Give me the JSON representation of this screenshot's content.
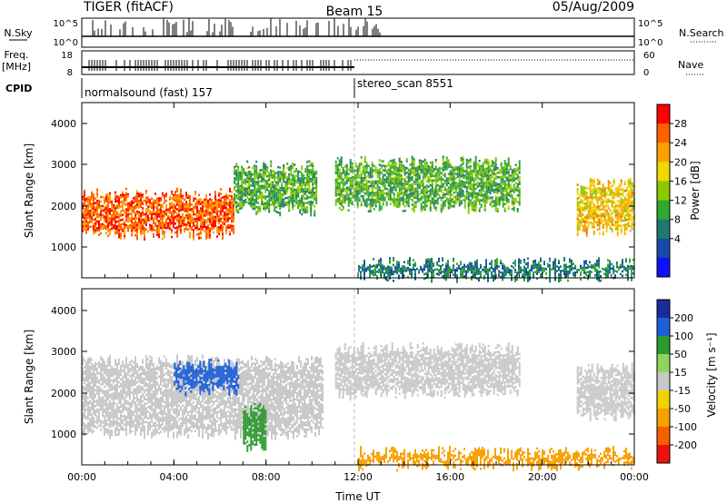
{
  "header": {
    "radar_title": "TIGER (fitACF)",
    "beam": "Beam 15",
    "date": "05/Aug/2009"
  },
  "strips": {
    "nsky_label": "N.Sky",
    "nsky_ticks": [
      "10^5",
      "10^0"
    ],
    "nsearch_label": "N.Search",
    "freq_label_1": "Freq.",
    "freq_label_2": "[MHz]",
    "freq_ticks": [
      "18",
      "8"
    ],
    "nave_label": "Nave",
    "nave_ticks": [
      "60",
      "0"
    ],
    "cpid_label": "CPID",
    "cpid_segments": [
      {
        "label": "normalsound (fast) 157",
        "start_hour": 0
      },
      {
        "label": "stereo_scan 8551",
        "start_hour": 12
      }
    ]
  },
  "panel_power": {
    "ylabel": "Slant Range [km]",
    "yticks": [
      "4000",
      "3000",
      "2000",
      "1000"
    ],
    "colorbar_label": "Power [dB]",
    "colorbar_ticks": [
      "28",
      "24",
      "20",
      "16",
      "12",
      "8",
      "4"
    ],
    "colors": [
      "#ff0000",
      "#ff6000",
      "#ffa000",
      "#f0d800",
      "#8cc800",
      "#2ea82e",
      "#1e7a6e",
      "#1a4aa8",
      "#1010ff"
    ]
  },
  "panel_velocity": {
    "ylabel": "Slant Range [km]",
    "yticks": [
      "4000",
      "3000",
      "2000",
      "1000"
    ],
    "colorbar_label": "Velocity [m s⁻¹]",
    "colorbar_ticks": [
      "200",
      "100",
      "50",
      "15",
      "-15",
      "-50",
      "-100",
      "-200"
    ],
    "colors": [
      "#1c2a9c",
      "#1d5fd8",
      "#2e9a2e",
      "#8fd45c",
      "#c8c8c8",
      "#f0d200",
      "#f8a000",
      "#f46000",
      "#ee1010"
    ]
  },
  "x_axis": {
    "ticks": [
      "00:00",
      "04:00",
      "08:00",
      "12:00",
      "16:00",
      "20:00",
      "00:00"
    ],
    "label": "Time UT"
  },
  "chart_data": {
    "type": "heatmap",
    "x_range_hours": [
      0,
      24
    ],
    "y_range_km": [
      180,
      4600
    ],
    "power_regions": [
      {
        "start_hour": 0.0,
        "end_hour": 6.6,
        "range_km": [
          1300,
          2300
        ],
        "level_db": 26
      },
      {
        "start_hour": 6.6,
        "end_hour": 10.2,
        "range_km": [
          1900,
          3000
        ],
        "level_db": 12
      },
      {
        "start_hour": 11.0,
        "end_hour": 19.0,
        "range_km": [
          2000,
          3100
        ],
        "level_db": 12
      },
      {
        "start_hour": 21.5,
        "end_hour": 24.0,
        "range_km": [
          1400,
          2600
        ],
        "level_db": 20
      },
      {
        "start_hour": 12.0,
        "end_hour": 24.0,
        "range_km": [
          250,
          550
        ],
        "level_db": 8
      }
    ],
    "velocity_regions": [
      {
        "start_hour": 0.0,
        "end_hour": 10.5,
        "range_km": [
          1000,
          2800
        ],
        "velocity_ms": 0
      },
      {
        "start_hour": 4.0,
        "end_hour": 6.8,
        "range_km": [
          2100,
          2700
        ],
        "velocity_ms": 150
      },
      {
        "start_hour": 7.0,
        "end_hour": 8.0,
        "range_km": [
          600,
          1600
        ],
        "velocity_ms": 80
      },
      {
        "start_hour": 11.0,
        "end_hour": 19.0,
        "range_km": [
          2000,
          3100
        ],
        "velocity_ms": 0
      },
      {
        "start_hour": 21.5,
        "end_hour": 24.0,
        "range_km": [
          1400,
          2600
        ],
        "velocity_ms": 0
      },
      {
        "start_hour": 12.0,
        "end_hour": 24.0,
        "range_km": [
          200,
          500
        ],
        "velocity_ms": -60
      }
    ]
  }
}
